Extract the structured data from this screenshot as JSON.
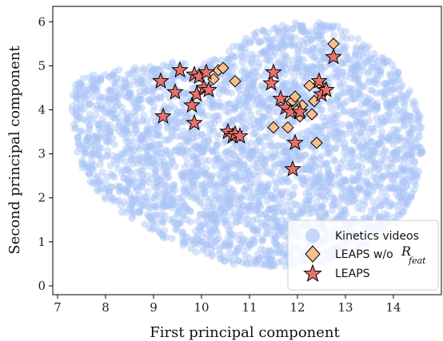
{
  "chart_data": {
    "type": "scatter",
    "xlabel": "First principal component",
    "ylabel": "Second principal component",
    "xlim": [
      6.9,
      15.0
    ],
    "ylim": [
      -0.2,
      6.35
    ],
    "xticks": [
      7,
      8,
      9,
      10,
      11,
      12,
      13,
      14
    ],
    "yticks": [
      0,
      1,
      2,
      3,
      4,
      5,
      6
    ],
    "grid": false,
    "legend_position": "bottom-right",
    "legend": {
      "kinetics": "Kinetics videos",
      "no_rfeat_prefix": "LEAPS w/o",
      "no_rfeat_symbol": "R",
      "no_rfeat_subscript": "feat",
      "leaps": "LEAPS"
    },
    "colors": {
      "kinetics": "#a9c3f7",
      "diamond_fill": "#f8bf8c",
      "star_fill": "#e8716a",
      "edge": "#000000"
    },
    "kinetics_region": {
      "description_points": [
        [
          7.3,
          4.6
        ],
        [
          7.8,
          4.85
        ],
        [
          8.5,
          4.95
        ],
        [
          9.3,
          5.1
        ],
        [
          9.9,
          5.05
        ],
        [
          10.5,
          5.3
        ],
        [
          11.0,
          5.75
        ],
        [
          11.7,
          5.95
        ],
        [
          12.4,
          6.05
        ],
        [
          13.1,
          5.85
        ],
        [
          13.8,
          5.3
        ],
        [
          14.3,
          4.6
        ],
        [
          14.65,
          3.6
        ],
        [
          14.55,
          2.4
        ],
        [
          14.15,
          1.5
        ],
        [
          13.5,
          0.95
        ],
        [
          12.6,
          0.55
        ],
        [
          11.8,
          0.42
        ],
        [
          10.8,
          0.45
        ],
        [
          9.9,
          0.75
        ],
        [
          9.0,
          1.2
        ],
        [
          8.2,
          1.75
        ],
        [
          7.6,
          2.4
        ],
        [
          7.35,
          3.2
        ],
        [
          7.3,
          3.9
        ]
      ]
    },
    "series": [
      {
        "name": "LEAPS w/o R_feat",
        "marker": "diamond",
        "points": [
          [
            10.25,
            4.7
          ],
          [
            10.35,
            4.9
          ],
          [
            10.45,
            4.95
          ],
          [
            10.7,
            4.65
          ],
          [
            11.5,
            3.6
          ],
          [
            11.8,
            3.6
          ],
          [
            11.9,
            4.2
          ],
          [
            11.95,
            4.3
          ],
          [
            12.0,
            4.0
          ],
          [
            12.05,
            3.85
          ],
          [
            12.1,
            4.1
          ],
          [
            12.25,
            4.55
          ],
          [
            12.3,
            3.9
          ],
          [
            12.35,
            4.2
          ],
          [
            12.4,
            3.25
          ],
          [
            12.45,
            4.6
          ],
          [
            12.55,
            4.4
          ],
          [
            12.75,
            5.5
          ]
        ]
      },
      {
        "name": "LEAPS",
        "marker": "star",
        "points": [
          [
            9.15,
            4.65
          ],
          [
            9.2,
            3.85
          ],
          [
            9.45,
            4.4
          ],
          [
            9.55,
            4.9
          ],
          [
            9.8,
            4.1
          ],
          [
            9.85,
            3.7
          ],
          [
            9.85,
            4.8
          ],
          [
            9.9,
            4.35
          ],
          [
            9.95,
            4.75
          ],
          [
            10.05,
            4.5
          ],
          [
            10.1,
            4.85
          ],
          [
            10.15,
            4.45
          ],
          [
            10.55,
            3.5
          ],
          [
            10.65,
            3.4
          ],
          [
            10.7,
            3.45
          ],
          [
            10.8,
            3.4
          ],
          [
            11.45,
            4.6
          ],
          [
            11.5,
            4.85
          ],
          [
            11.65,
            4.25
          ],
          [
            11.75,
            4.05
          ],
          [
            11.85,
            3.95
          ],
          [
            11.9,
            2.65
          ],
          [
            11.95,
            3.25
          ],
          [
            12.05,
            3.95
          ],
          [
            12.45,
            4.65
          ],
          [
            12.5,
            4.35
          ],
          [
            12.6,
            4.45
          ],
          [
            12.75,
            5.2
          ]
        ]
      }
    ]
  }
}
